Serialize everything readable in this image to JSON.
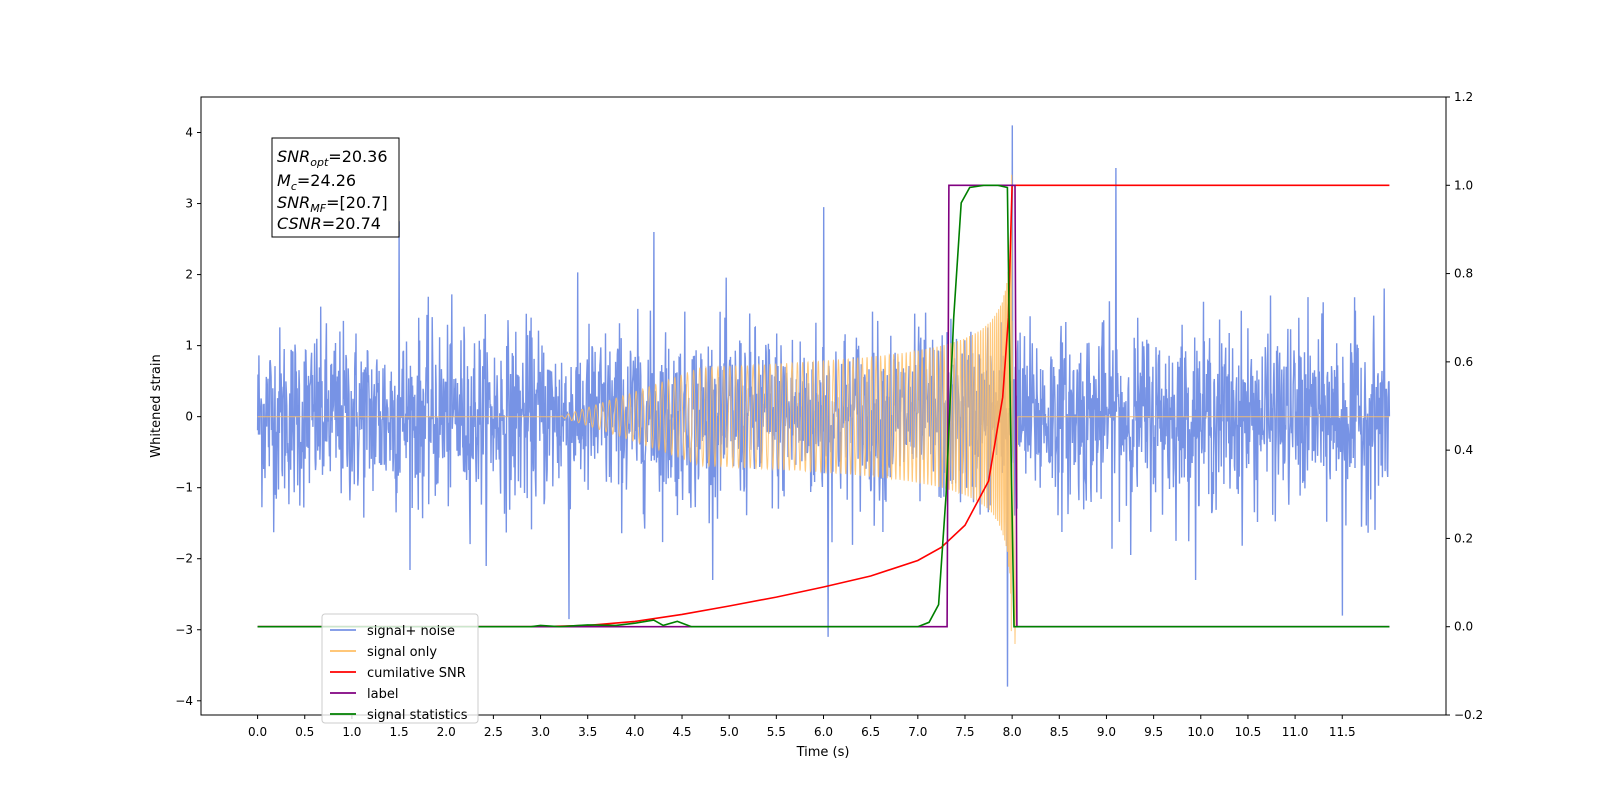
{
  "chart_data": {
    "type": "line",
    "xlabel": "Time (s)",
    "ylabel": "Whitened strain",
    "xlim": [
      -0.6,
      12.6
    ],
    "ylim": [
      -4.2,
      4.5
    ],
    "y2lim": [
      -0.2,
      1.2
    ],
    "x_ticks": [
      0.0,
      0.5,
      1.0,
      1.5,
      2.0,
      2.5,
      3.0,
      3.5,
      4.0,
      4.5,
      5.0,
      5.5,
      6.0,
      6.5,
      7.0,
      7.5,
      8.0,
      8.5,
      9.0,
      9.5,
      10.0,
      10.5,
      11.0,
      11.5
    ],
    "x_tick_labels": [
      "0.0",
      "0.5",
      "1.0",
      "1.5",
      "2.0",
      "2.5",
      "3.0",
      "3.5",
      "4.0",
      "4.5",
      "5.0",
      "5.5",
      "6.0",
      "6.5",
      "7.0",
      "7.5",
      "8.0",
      "8.5",
      "9.0",
      "9.5",
      "10.0",
      "10.5",
      "11.0",
      "11.5"
    ],
    "y_ticks": [
      -4,
      -3,
      -2,
      -1,
      0,
      1,
      2,
      3,
      4
    ],
    "y_tick_labels": [
      "−4",
      "−3",
      "−2",
      "−1",
      "0",
      "1",
      "2",
      "3",
      "4"
    ],
    "y2_ticks": [
      -0.2,
      0.0,
      0.2,
      0.4,
      0.6,
      0.8,
      1.0,
      1.2
    ],
    "y2_tick_labels": [
      "−0.2",
      "0.0",
      "0.2",
      "0.4",
      "0.6",
      "0.8",
      "1.0",
      "1.2"
    ],
    "grid": false,
    "legend_position": "bottom-left",
    "annotation": {
      "snr_opt": "=20.36",
      "mc": "=24.26",
      "snr_mf": "=[20.7]",
      "csnr": "=20.74"
    },
    "series": [
      {
        "name": "signal+ noise",
        "color": "#7793e5",
        "axis": "left",
        "kind": "noise",
        "x_range": [
          0.0,
          12.0
        ],
        "envelope_typical": 1.5,
        "spikes": [
          [
            1.5,
            2.75
          ],
          [
            4.2,
            2.6
          ],
          [
            6.0,
            2.95
          ],
          [
            7.95,
            -3.8
          ],
          [
            8.0,
            4.1
          ],
          [
            9.1,
            3.5
          ],
          [
            3.3,
            -2.85
          ],
          [
            6.05,
            -3.1
          ],
          [
            11.5,
            -2.8
          ]
        ]
      },
      {
        "name": "signal only",
        "color": "#ffbf66",
        "axis": "left",
        "kind": "chirp",
        "x_range": [
          0.0,
          12.0
        ],
        "merger_time": 8.0,
        "peak_amplitude": 3.7
      },
      {
        "name": "cumilative SNR",
        "color": "#ff0000",
        "axis": "right",
        "x": [
          0.0,
          3.0,
          3.5,
          4.0,
          4.5,
          5.0,
          5.5,
          6.0,
          6.5,
          7.0,
          7.25,
          7.5,
          7.75,
          7.9,
          7.96,
          8.0,
          12.0
        ],
        "y": [
          0.0,
          0.0,
          0.003,
          0.012,
          0.028,
          0.047,
          0.067,
          0.09,
          0.115,
          0.15,
          0.18,
          0.23,
          0.33,
          0.52,
          0.7,
          1.0,
          1.0
        ]
      },
      {
        "name": "label",
        "color": "#800080",
        "axis": "right",
        "x": [
          0.0,
          7.31,
          7.33,
          8.03,
          8.05,
          12.0
        ],
        "y": [
          0.0,
          0.0,
          1.0,
          1.0,
          0.0,
          0.0
        ]
      },
      {
        "name": "signal statistics",
        "color": "#008000",
        "axis": "right",
        "x": [
          0.0,
          2.9,
          3.0,
          3.2,
          3.5,
          3.8,
          4.0,
          4.2,
          4.3,
          4.45,
          4.6,
          7.0,
          7.12,
          7.22,
          7.3,
          7.38,
          7.46,
          7.55,
          7.7,
          7.85,
          7.95,
          7.98,
          8.02,
          8.06,
          12.0
        ],
        "y": [
          0.0,
          0.0,
          0.003,
          0.0,
          0.004,
          0.003,
          0.008,
          0.015,
          0.003,
          0.012,
          0.0,
          0.0,
          0.01,
          0.05,
          0.3,
          0.7,
          0.96,
          0.995,
          1.0,
          1.0,
          0.995,
          0.5,
          0.0,
          0.0,
          0.0
        ]
      }
    ]
  }
}
